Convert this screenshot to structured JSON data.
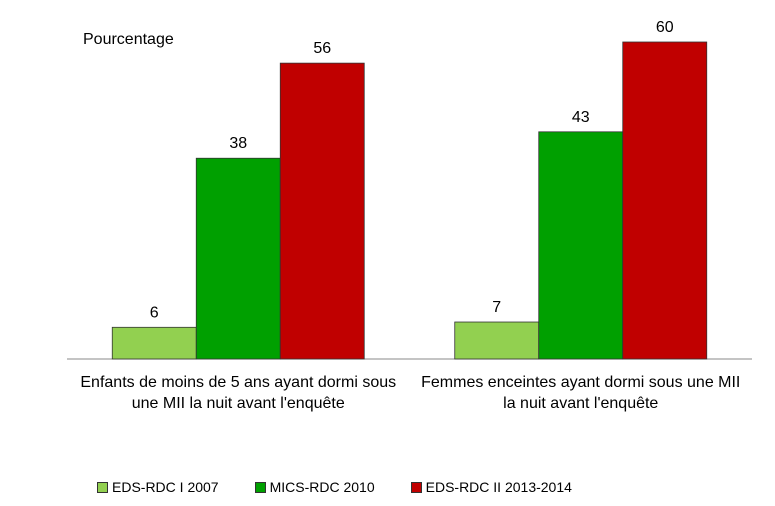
{
  "chart_data": {
    "type": "bar",
    "y_label": "Pourcentage",
    "categories": [
      "Enfants de moins de 5 ans ayant dormi sous une MII la nuit avant l'enquête",
      "Femmes enceintes ayant dormi sous une MII la nuit avant l'enquête"
    ],
    "series": [
      {
        "name": "EDS-RDC I 2007",
        "color": "#92d050",
        "values": [
          6,
          7
        ]
      },
      {
        "name": "MICS-RDC 2010",
        "color": "#00a000",
        "values": [
          38,
          43
        ]
      },
      {
        "name": "EDS-RDC II 2013-2014",
        "color": "#c00000",
        "values": [
          56,
          60
        ]
      }
    ],
    "legend": "bottom"
  }
}
